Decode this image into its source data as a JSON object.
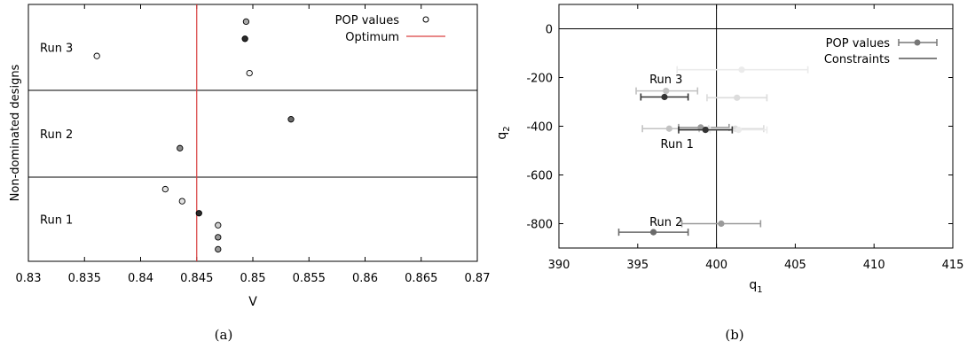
{
  "chart_data": [
    {
      "type": "scatter",
      "panel_label": "(a)",
      "xlabel": "V",
      "ylabel": "Non-dominated designs",
      "xlim": [
        0.83,
        0.87
      ],
      "xticks": [
        "0.83",
        "0.835",
        "0.84",
        "0.845",
        "0.85",
        "0.855",
        "0.86",
        "0.865",
        "0.87"
      ],
      "grid": false,
      "legend_position": "top-right",
      "legend": {
        "pop": "POP values",
        "optimum": "Optimum"
      },
      "optimum_v": 0.845,
      "runs": [
        {
          "label": "Run 3",
          "points": [
            {
              "v": 0.8494,
              "shade": "#a8a8a8"
            },
            {
              "v": 0.8493,
              "shade": "#2a2a2a"
            },
            {
              "v": 0.8361,
              "shade": "#f4f4f4"
            },
            {
              "v": 0.8497,
              "shade": "#f4f4f4"
            }
          ]
        },
        {
          "label": "Run 2",
          "points": [
            {
              "v": 0.8534,
              "shade": "#6a6a6a"
            },
            {
              "v": 0.8435,
              "shade": "#8a8a8a"
            }
          ]
        },
        {
          "label": "Run 1",
          "points": [
            {
              "v": 0.8422,
              "shade": "#e2e2e2"
            },
            {
              "v": 0.8437,
              "shade": "#e2e2e2"
            },
            {
              "v": 0.8452,
              "shade": "#2a2a2a"
            },
            {
              "v": 0.8469,
              "shade": "#cfcfcf"
            },
            {
              "v": 0.8469,
              "shade": "#9a9a9a"
            },
            {
              "v": 0.8469,
              "shade": "#9a9a9a"
            }
          ]
        }
      ]
    },
    {
      "type": "scatter",
      "panel_label": "(b)",
      "xlabel": "q1",
      "ylabel": "q2",
      "xlim": [
        390,
        415
      ],
      "ylim": [
        -900,
        100
      ],
      "xticks": [
        390,
        395,
        400,
        405,
        410,
        415
      ],
      "yticks": [
        0,
        -200,
        -400,
        -600,
        -800
      ],
      "grid": false,
      "legend_position": "top-right",
      "legend": {
        "pop": "POP values",
        "constraints": "Constraints"
      },
      "constraints": {
        "q1": 400,
        "q2": 0
      },
      "run_labels": [
        {
          "text": "Run 3",
          "q1": 396.8,
          "q2": -205
        },
        {
          "text": "Run 1",
          "q1": 397.5,
          "q2": -470
        },
        {
          "text": "Run 2",
          "q1": 396.8,
          "q2": -790
        }
      ],
      "points": [
        {
          "q1": 401.6,
          "q2": -168,
          "xerr": [
            397.5,
            405.8
          ],
          "shade": "#ebebeb"
        },
        {
          "q1": 396.8,
          "q2": -255,
          "xerr": [
            394.9,
            398.8
          ],
          "shade": "#c2c2c2"
        },
        {
          "q1": 401.3,
          "q2": -283,
          "xerr": [
            399.4,
            403.2
          ],
          "shade": "#dcdcdc"
        },
        {
          "q1": 396.7,
          "q2": -280,
          "xerr": [
            395.2,
            398.2
          ],
          "shade": "#333333"
        },
        {
          "q1": 397.0,
          "q2": -410,
          "xerr": [
            395.3,
            398.9
          ],
          "shade": "#c2c2c2"
        },
        {
          "q1": 399.0,
          "q2": -405,
          "xerr": [
            397.6,
            400.8
          ],
          "shade": "#9a9a9a"
        },
        {
          "q1": 401.2,
          "q2": -410,
          "xerr": [
            399.5,
            403.0
          ],
          "shade": "#dcdcdc"
        },
        {
          "q1": 401.4,
          "q2": -415,
          "xerr": [
            399.6,
            403.2
          ],
          "shade": "#ebebeb"
        },
        {
          "q1": 399.3,
          "q2": -415,
          "xerr": [
            397.6,
            401.0
          ],
          "shade": "#333333"
        },
        {
          "q1": 400.3,
          "q2": -800,
          "xerr": [
            397.8,
            402.8
          ],
          "shade": "#9a9a9a"
        },
        {
          "q1": 396.0,
          "q2": -835,
          "xerr": [
            393.8,
            398.2
          ],
          "shade": "#6a6a6a"
        }
      ]
    }
  ]
}
